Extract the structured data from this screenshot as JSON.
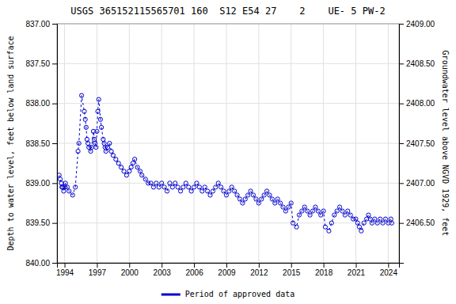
{
  "chart_data": {
    "type": "line",
    "title": "USGS 365152115565701 160  S12 E54 27    2    UE- 5 PW-2",
    "y_label": "Depth to water level, feet below land surface",
    "y2_label": "Groundwater level above NGVD 1929, feet",
    "x": [
      1993.5,
      1993.6,
      1993.7,
      1993.75,
      1993.83,
      1993.92,
      1994.0,
      1994.08,
      1994.25,
      1994.42,
      1994.75,
      1995.0,
      1995.25,
      1995.33,
      1995.58,
      1995.83,
      1995.92,
      1996.0,
      1996.08,
      1996.17,
      1996.25,
      1996.42,
      1996.5,
      1996.67,
      1996.75,
      1996.83,
      1996.92,
      1997.0,
      1997.08,
      1997.17,
      1997.33,
      1997.42,
      1997.58,
      1997.67,
      1997.75,
      1997.83,
      1998.0,
      1998.17,
      1998.33,
      1998.5,
      1998.75,
      1999.0,
      1999.25,
      1999.5,
      1999.75,
      2000.0,
      2000.17,
      2000.33,
      2000.5,
      2000.75,
      2001.0,
      2001.17,
      2001.5,
      2001.75,
      2002.0,
      2002.25,
      2002.5,
      2002.75,
      2003.0,
      2003.25,
      2003.5,
      2003.75,
      2004.0,
      2004.25,
      2004.5,
      2004.75,
      2005.0,
      2005.25,
      2005.5,
      2005.75,
      2006.0,
      2006.25,
      2006.5,
      2006.75,
      2007.0,
      2007.25,
      2007.5,
      2007.75,
      2008.0,
      2008.25,
      2008.5,
      2008.75,
      2009.0,
      2009.25,
      2009.5,
      2009.75,
      2010.0,
      2010.25,
      2010.5,
      2010.75,
      2011.0,
      2011.25,
      2011.5,
      2011.75,
      2012.0,
      2012.25,
      2012.5,
      2012.75,
      2013.0,
      2013.25,
      2013.5,
      2013.75,
      2014.0,
      2014.25,
      2014.5,
      2014.75,
      2015.0,
      2015.17,
      2015.5,
      2015.75,
      2016.0,
      2016.25,
      2016.5,
      2016.75,
      2017.0,
      2017.25,
      2017.5,
      2017.75,
      2018.0,
      2018.17,
      2018.5,
      2018.75,
      2019.0,
      2019.25,
      2019.5,
      2019.75,
      2020.0,
      2020.25,
      2020.5,
      2020.75,
      2021.0,
      2021.17,
      2021.33,
      2021.5,
      2021.75,
      2022.0,
      2022.17,
      2022.33,
      2022.5,
      2022.75,
      2023.0,
      2023.25,
      2023.5,
      2023.75,
      2024.0,
      2024.25,
      2024.33
    ],
    "series": [
      {
        "name": "Period of approved data",
        "color": "#0000cc",
        "marker": "circle",
        "line_style": "dashed",
        "values": [
          838.9,
          838.95,
          839.0,
          839.05,
          839.05,
          839.1,
          839.05,
          839.0,
          839.05,
          839.1,
          839.15,
          839.05,
          838.6,
          838.5,
          837.9,
          838.1,
          838.2,
          838.3,
          838.45,
          838.5,
          838.55,
          838.6,
          838.55,
          838.35,
          838.45,
          838.5,
          838.55,
          838.35,
          838.1,
          837.95,
          838.2,
          838.3,
          838.45,
          838.5,
          838.55,
          838.6,
          838.55,
          838.5,
          838.6,
          838.65,
          838.7,
          838.75,
          838.8,
          838.85,
          838.9,
          838.85,
          838.8,
          838.75,
          838.7,
          838.8,
          838.85,
          838.9,
          838.95,
          839.0,
          839.0,
          839.05,
          839.0,
          839.05,
          839.0,
          839.05,
          839.1,
          839.0,
          839.05,
          839.0,
          839.05,
          839.1,
          839.05,
          839.0,
          839.05,
          839.1,
          839.05,
          839.0,
          839.05,
          839.1,
          839.05,
          839.1,
          839.15,
          839.1,
          839.05,
          839.0,
          839.05,
          839.1,
          839.15,
          839.1,
          839.05,
          839.1,
          839.15,
          839.2,
          839.25,
          839.2,
          839.15,
          839.1,
          839.15,
          839.2,
          839.25,
          839.2,
          839.15,
          839.1,
          839.15,
          839.2,
          839.25,
          839.2,
          839.25,
          839.3,
          839.35,
          839.3,
          839.25,
          839.5,
          839.55,
          839.4,
          839.35,
          839.3,
          839.35,
          839.4,
          839.35,
          839.3,
          839.35,
          839.4,
          839.35,
          839.55,
          839.6,
          839.5,
          839.4,
          839.35,
          839.3,
          839.35,
          839.4,
          839.35,
          839.4,
          839.45,
          839.45,
          839.5,
          839.55,
          839.6,
          839.5,
          839.45,
          839.4,
          839.45,
          839.5,
          839.45,
          839.5,
          839.45,
          839.5,
          839.45,
          839.5,
          839.45,
          839.5
        ]
      }
    ],
    "xlim": [
      1993.3,
      2025.0
    ],
    "xticks": [
      1994,
      1997,
      2000,
      2003,
      2006,
      2009,
      2012,
      2015,
      2018,
      2021,
      2024
    ],
    "ylim": [
      840.0,
      837.0
    ],
    "yticks": [
      {
        "value": 837.0,
        "label": "837.00"
      },
      {
        "value": 837.5,
        "label": "837.50"
      },
      {
        "value": 838.0,
        "label": "838.00"
      },
      {
        "value": 838.5,
        "label": "838.50"
      },
      {
        "value": 839.0,
        "label": "839.00"
      },
      {
        "value": 839.5,
        "label": "839.50"
      },
      {
        "value": 840.0,
        "label": "840.00"
      }
    ],
    "y2lim": [
      2406.0,
      2409.0
    ],
    "y2ticks": [
      {
        "value": 2406.5,
        "label": "2406.50"
      },
      {
        "value": 2407.0,
        "label": "2407.00"
      },
      {
        "value": 2407.5,
        "label": "2407.50"
      },
      {
        "value": 2408.0,
        "label": "2408.00"
      },
      {
        "value": 2408.5,
        "label": "2408.50"
      },
      {
        "value": 2409.0,
        "label": "2409.00"
      }
    ],
    "grid": true,
    "legend": "bottom"
  }
}
